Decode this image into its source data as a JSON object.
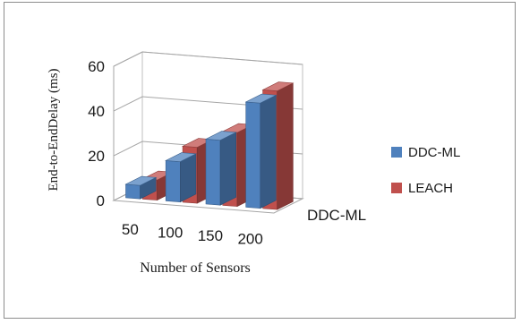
{
  "chart_data": {
    "type": "bar",
    "subtype": "3d-clustered-column",
    "title": "",
    "xlabel": "Number of Sensors",
    "ylabel": "End-to-EndDelay (ms)",
    "categories": [
      "50",
      "100",
      "150",
      "200"
    ],
    "depth_label": "DDC-ML",
    "ylim": [
      0,
      60
    ],
    "yticks": [
      "0",
      "20",
      "40",
      "60"
    ],
    "series": [
      {
        "name": "DDC-ML",
        "values": [
          6,
          18,
          29,
          47
        ],
        "color": "#4f81bd"
      },
      {
        "name": "LEACH",
        "values": [
          9,
          25,
          33,
          53
        ],
        "color": "#c0504d"
      }
    ],
    "legend_position": "right",
    "grid": true
  }
}
